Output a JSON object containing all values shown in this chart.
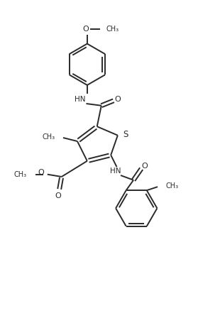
{
  "bg_color": "#ffffff",
  "line_color": "#2a2a2a",
  "line_width": 1.4,
  "figsize": [
    2.79,
    4.48
  ],
  "dpi": 100,
  "xlim": [
    0,
    10
  ],
  "ylim": [
    0,
    16
  ]
}
